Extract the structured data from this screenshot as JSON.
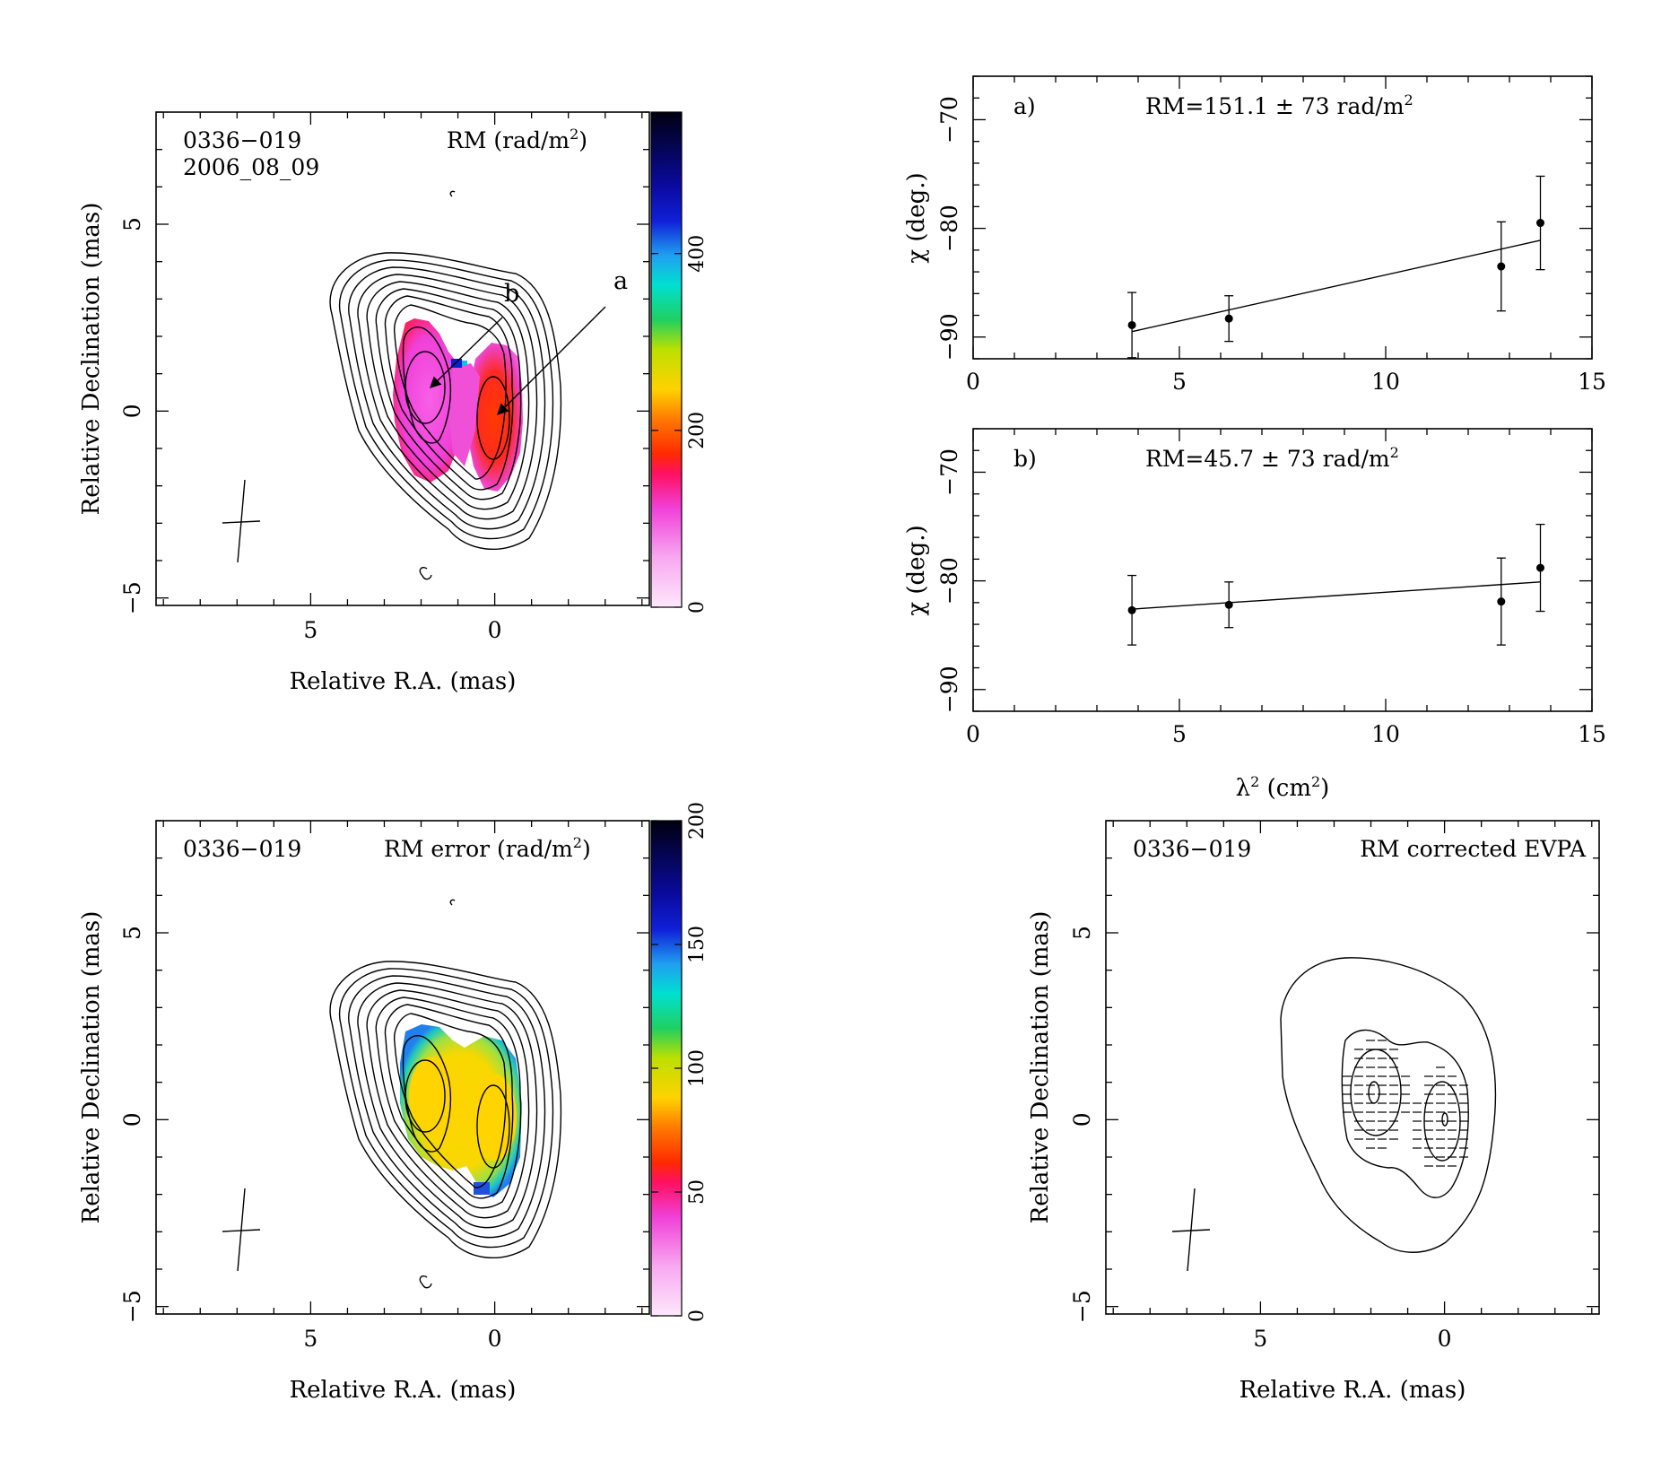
{
  "figure": {
    "panels": {
      "rm_map": {
        "source": "0336−019",
        "date": "2006_08_09",
        "map_label_pre": "RM (rad/m",
        "map_label_sup": "2",
        "map_label_post": ")",
        "xlabel": "Relative R.A. (mas)",
        "ylabel": "Relative Declination (mas)",
        "colorbar_ticks": [
          "0",
          "200",
          "400"
        ],
        "arrow_labels": [
          "a",
          "b"
        ]
      },
      "rm_error_map": {
        "source": "0336−019",
        "map_label_pre": "RM error (rad/m",
        "map_label_sup": "2",
        "map_label_post": ")",
        "xlabel": "Relative R.A. (mas)",
        "ylabel": "Relative Declination (mas)",
        "colorbar_ticks": [
          "0",
          "50",
          "100",
          "150",
          "200"
        ]
      },
      "evpa_map": {
        "source": "0336−019",
        "map_label": "RM corrected EVPA",
        "xlabel": "Relative R.A. (mas)",
        "ylabel": "Relative Declination (mas)"
      },
      "fit_a": {
        "tag": "a)",
        "rm_pre": "RM=151.1 ± 73 rad/m",
        "rm_sup": "2",
        "ylabel_pre": "χ (deg.)"
      },
      "fit_b": {
        "tag": "b)",
        "rm_pre": "RM=45.7 ± 73 rad/m",
        "rm_sup": "2",
        "ylabel_pre": "χ (deg.)",
        "xlabel_pre": "λ",
        "xlabel_sup": "2",
        "xlabel_mid": " (cm",
        "xlabel_sup2": "2",
        "xlabel_post": ")"
      }
    },
    "map_axis_ticks": {
      "x": [
        {
          "v": 5,
          "t": "5"
        },
        {
          "v": 0,
          "t": "0"
        }
      ],
      "y": [
        {
          "v": -5,
          "t": "−5"
        },
        {
          "v": 0,
          "t": "0"
        },
        {
          "v": 5,
          "t": "5"
        }
      ]
    },
    "fit_axis_ticks": {
      "x": [
        {
          "v": 0,
          "t": "0"
        },
        {
          "v": 5,
          "t": "5"
        },
        {
          "v": 10,
          "t": "10"
        },
        {
          "v": 15,
          "t": "15"
        }
      ],
      "y": [
        {
          "v": -90,
          "t": "−90"
        },
        {
          "v": -80,
          "t": "−80"
        },
        {
          "v": -70,
          "t": "−70"
        }
      ]
    }
  },
  "chart_data": [
    {
      "type": "scatter",
      "title": "a)",
      "annotation": "RM=151.1 ± 73 rad/m²",
      "xlabel": "λ² (cm²)",
      "ylabel": "χ (deg.)",
      "xlim": [
        0,
        15
      ],
      "ylim": [
        -92,
        -66
      ],
      "points": [
        {
          "x": 3.85,
          "y": -88.9,
          "err": 3.0
        },
        {
          "x": 6.2,
          "y": -88.3,
          "err": 2.1
        },
        {
          "x": 12.8,
          "y": -83.5,
          "err": 4.1
        },
        {
          "x": 13.75,
          "y": -79.5,
          "err": 4.3
        }
      ],
      "fit_line": {
        "x": [
          3.85,
          13.75
        ],
        "y": [
          -89.5,
          -81.1
        ]
      }
    },
    {
      "type": "scatter",
      "title": "b)",
      "annotation": "RM=45.7 ± 73 rad/m²",
      "xlabel": "λ² (cm²)",
      "ylabel": "χ (deg.)",
      "xlim": [
        0,
        15
      ],
      "ylim": [
        -92,
        -66
      ],
      "points": [
        {
          "x": 3.85,
          "y": -82.7,
          "err": 3.2
        },
        {
          "x": 6.2,
          "y": -82.2,
          "err": 2.1
        },
        {
          "x": 12.8,
          "y": -81.9,
          "err": 4.0
        },
        {
          "x": 13.75,
          "y": -78.8,
          "err": 4.0
        }
      ],
      "fit_line": {
        "x": [
          3.85,
          13.75
        ],
        "y": [
          -82.6,
          -80.1
        ]
      }
    }
  ]
}
